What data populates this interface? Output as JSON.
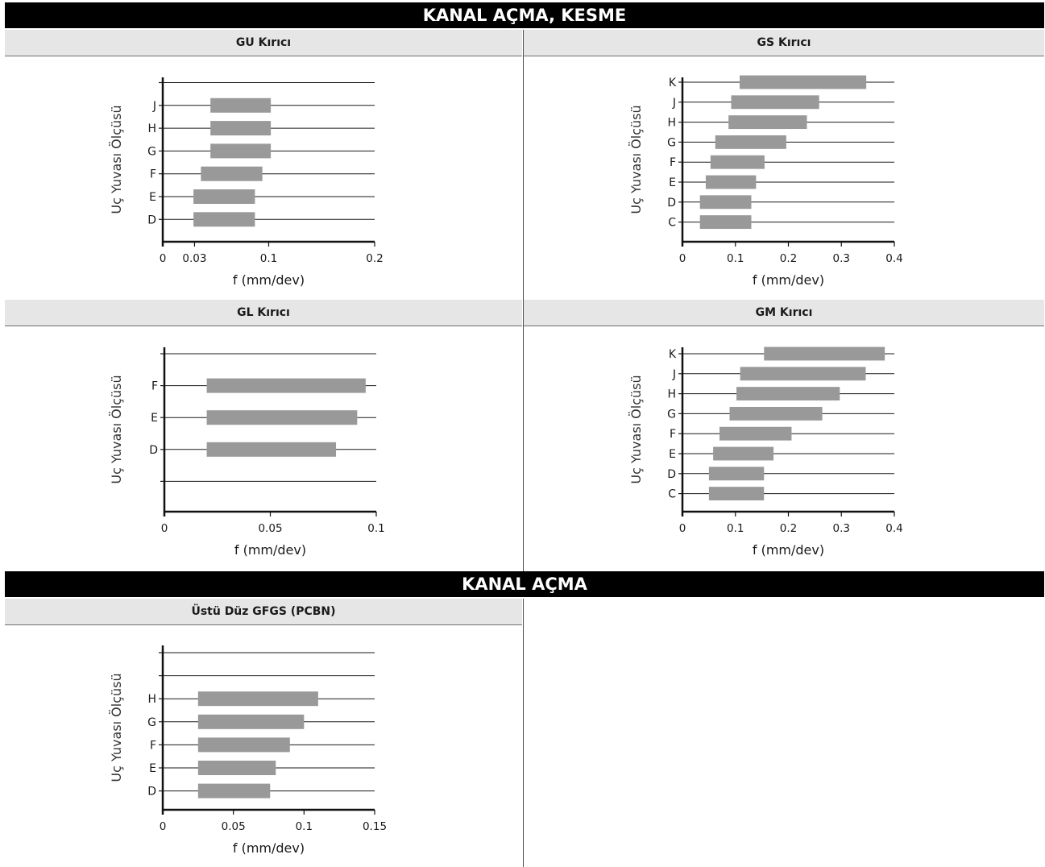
{
  "sections": [
    {
      "title": "KANAL AÇMA, KESME"
    },
    {
      "title": "KANAL AÇMA"
    }
  ],
  "chart_data": [
    {
      "type": "bar",
      "title": "GU Kırıcı",
      "xlabel": "f (mm/dev)",
      "ylabel": "Uç Yuvası Ölçüsü",
      "xticks": [
        0,
        0.03,
        0.1,
        0.2
      ],
      "xtick_labels": [
        "0",
        "0.03",
        "0.1",
        "0.2"
      ],
      "xlim": [
        0,
        0.2
      ],
      "rows": [
        "",
        "J",
        "H",
        "G",
        "F",
        "E",
        "D"
      ],
      "bars": [
        {
          "category": "J",
          "min": 0.045,
          "max": 0.102
        },
        {
          "category": "H",
          "min": 0.045,
          "max": 0.102
        },
        {
          "category": "G",
          "min": 0.045,
          "max": 0.102
        },
        {
          "category": "F",
          "min": 0.036,
          "max": 0.094
        },
        {
          "category": "E",
          "min": 0.029,
          "max": 0.087
        },
        {
          "category": "D",
          "min": 0.029,
          "max": 0.087
        }
      ],
      "grid": true
    },
    {
      "type": "bar",
      "title": "GS Kırıcı",
      "xlabel": "f (mm/dev)",
      "ylabel": "Uç Yuvası Ölçüsü",
      "xticks": [
        0,
        0.1,
        0.2,
        0.3,
        0.4
      ],
      "xtick_labels": [
        "0",
        "0.1",
        "0.2",
        "0.3",
        "0.4"
      ],
      "xlim": [
        0,
        0.4
      ],
      "rows": [
        "K",
        "J",
        "H",
        "G",
        "F",
        "E",
        "D",
        "C"
      ],
      "bars": [
        {
          "category": "K",
          "min": 0.108,
          "max": 0.347
        },
        {
          "category": "J",
          "min": 0.092,
          "max": 0.258
        },
        {
          "category": "H",
          "min": 0.087,
          "max": 0.235
        },
        {
          "category": "G",
          "min": 0.062,
          "max": 0.196
        },
        {
          "category": "F",
          "min": 0.053,
          "max": 0.155
        },
        {
          "category": "E",
          "min": 0.044,
          "max": 0.139
        },
        {
          "category": "D",
          "min": 0.033,
          "max": 0.13
        },
        {
          "category": "C",
          "min": 0.033,
          "max": 0.13
        }
      ],
      "grid": true
    },
    {
      "type": "bar",
      "title": "GL Kırıcı",
      "xlabel": "f (mm/dev)",
      "ylabel": "Uç Yuvası Ölçüsü",
      "xticks": [
        0,
        0.05,
        0.1
      ],
      "xtick_labels": [
        "0",
        "0.05",
        "0.1"
      ],
      "xlim": [
        0,
        0.1
      ],
      "rows": [
        "",
        "F",
        "E",
        "D",
        ""
      ],
      "bars": [
        {
          "category": "F",
          "min": 0.02,
          "max": 0.095
        },
        {
          "category": "E",
          "min": 0.02,
          "max": 0.091
        },
        {
          "category": "D",
          "min": 0.02,
          "max": 0.081
        }
      ],
      "grid": true
    },
    {
      "type": "bar",
      "title": "GM Kırıcı",
      "xlabel": "f (mm/dev)",
      "ylabel": "Uç Yuvası Ölçüsü",
      "xticks": [
        0,
        0.1,
        0.2,
        0.3,
        0.4
      ],
      "xtick_labels": [
        "0",
        "0.1",
        "0.2",
        "0.3",
        "0.4"
      ],
      "xlim": [
        0,
        0.4
      ],
      "rows": [
        "K",
        "J",
        "H",
        "G",
        "F",
        "E",
        "D",
        "C"
      ],
      "bars": [
        {
          "category": "K",
          "min": 0.154,
          "max": 0.382
        },
        {
          "category": "J",
          "min": 0.109,
          "max": 0.346
        },
        {
          "category": "H",
          "min": 0.102,
          "max": 0.297
        },
        {
          "category": "G",
          "min": 0.089,
          "max": 0.264
        },
        {
          "category": "F",
          "min": 0.07,
          "max": 0.206
        },
        {
          "category": "E",
          "min": 0.058,
          "max": 0.172
        },
        {
          "category": "D",
          "min": 0.05,
          "max": 0.154
        },
        {
          "category": "C",
          "min": 0.05,
          "max": 0.154
        }
      ],
      "grid": true
    },
    {
      "type": "bar",
      "title": "Üstü Düz GFGS (PCBN)",
      "xlabel": "f (mm/dev)",
      "ylabel": "Uç Yuvası Ölçüsü",
      "xticks": [
        0,
        0.05,
        0.1,
        0.15
      ],
      "xtick_labels": [
        "0",
        "0.05",
        "0.1",
        "0.15"
      ],
      "xlim": [
        0,
        0.15
      ],
      "rows": [
        "",
        "",
        "H",
        "G",
        "F",
        "E",
        "D"
      ],
      "bars": [
        {
          "category": "H",
          "min": 0.025,
          "max": 0.11
        },
        {
          "category": "G",
          "min": 0.025,
          "max": 0.1
        },
        {
          "category": "F",
          "min": 0.025,
          "max": 0.09
        },
        {
          "category": "E",
          "min": 0.025,
          "max": 0.08
        },
        {
          "category": "D",
          "min": 0.025,
          "max": 0.076
        }
      ],
      "grid": true
    }
  ]
}
